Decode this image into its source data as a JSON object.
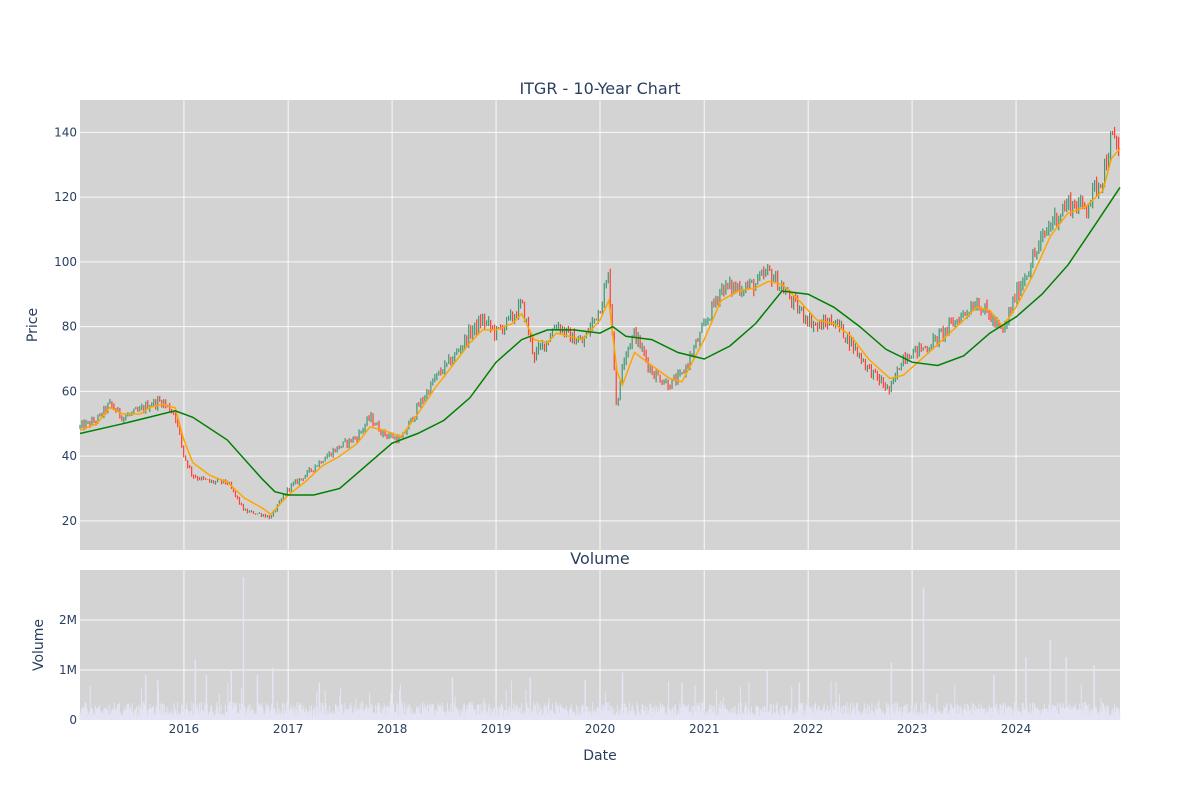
{
  "chart_data": [
    {
      "type": "candlestick",
      "title": "ITGR - 10-Year Chart",
      "ylabel": "Price",
      "ylim": [
        11,
        150
      ],
      "yticks": [
        20,
        40,
        60,
        80,
        100,
        120,
        140
      ],
      "xlim": [
        "2015-01-01",
        "2024-12-31"
      ],
      "xticks": [
        "2016",
        "2017",
        "2018",
        "2019",
        "2020",
        "2021",
        "2022",
        "2023",
        "2024"
      ],
      "grid": true,
      "colors": {
        "increasing": "#3d9970",
        "decreasing": "#ff4136",
        "ma_short": "#ffa500",
        "ma_long": "#008000",
        "plot_bg": "#d3d3d3"
      },
      "close_series": {
        "x": [
          "2015-01-01",
          "2015-03-01",
          "2015-04-15",
          "2015-06-01",
          "2015-08-01",
          "2015-09-01",
          "2015-10-15",
          "2015-12-01",
          "2016-01-01",
          "2016-02-01",
          "2016-04-01",
          "2016-06-01",
          "2016-08-01",
          "2016-10-01",
          "2016-11-01",
          "2017-01-01",
          "2017-03-01",
          "2017-05-01",
          "2017-07-01",
          "2017-09-01",
          "2017-10-15",
          "2017-12-01",
          "2018-02-01",
          "2018-04-01",
          "2018-06-01",
          "2018-08-01",
          "2018-10-01",
          "2018-11-15",
          "2019-01-01",
          "2019-03-01",
          "2019-04-01",
          "2019-05-15",
          "2019-07-01",
          "2019-08-01",
          "2019-09-15",
          "2019-11-01",
          "2020-01-01",
          "2020-02-01",
          "2020-03-01",
          "2020-03-20",
          "2020-05-01",
          "2020-07-01",
          "2020-09-01",
          "2020-10-15",
          "2021-01-01",
          "2021-03-01",
          "2021-05-01",
          "2021-07-01",
          "2021-08-15",
          "2021-10-01",
          "2021-12-01",
          "2022-02-01",
          "2022-04-01",
          "2022-06-01",
          "2022-08-01",
          "2022-10-15",
          "2022-12-01",
          "2023-03-01",
          "2023-05-01",
          "2023-07-01",
          "2023-08-15",
          "2023-10-01",
          "2023-11-15",
          "2024-01-01",
          "2024-03-01",
          "2024-05-01",
          "2024-07-01",
          "2024-09-01",
          "2024-11-01",
          "2024-12-01",
          "2024-12-31"
        ],
        "close": [
          49,
          51,
          56,
          52,
          54,
          56,
          57,
          53,
          40,
          34,
          32,
          32,
          23,
          22,
          21,
          30,
          34,
          39,
          43,
          46,
          52,
          47,
          45,
          55,
          64,
          70,
          78,
          82,
          78,
          83,
          87,
          71,
          76,
          81,
          77,
          75,
          86,
          96,
          53,
          70,
          78,
          66,
          62,
          65,
          80,
          92,
          92,
          93,
          97,
          92,
          85,
          80,
          82,
          75,
          67,
          60,
          71,
          74,
          79,
          84,
          88,
          83,
          78,
          90,
          101,
          112,
          118,
          117,
          127,
          138,
          134
        ]
      },
      "ma_short": {
        "x": [
          "2015-01-01",
          "2015-03-01",
          "2015-04-15",
          "2015-06-01",
          "2015-08-01",
          "2015-09-01",
          "2015-10-15",
          "2015-12-01",
          "2016-01-01",
          "2016-02-01",
          "2016-04-01",
          "2016-06-01",
          "2016-08-01",
          "2016-10-01",
          "2016-11-01",
          "2017-01-01",
          "2017-03-01",
          "2017-05-01",
          "2017-07-01",
          "2017-09-01",
          "2017-10-15",
          "2017-12-01",
          "2018-02-01",
          "2018-04-01",
          "2018-06-01",
          "2018-08-01",
          "2018-10-01",
          "2018-11-15",
          "2019-01-01",
          "2019-03-01",
          "2019-04-01",
          "2019-05-15",
          "2019-07-01",
          "2019-08-01",
          "2019-09-15",
          "2019-11-01",
          "2020-01-01",
          "2020-02-01",
          "2020-03-01",
          "2020-03-20",
          "2020-05-01",
          "2020-07-01",
          "2020-09-01",
          "2020-10-15",
          "2021-01-01",
          "2021-03-01",
          "2021-05-01",
          "2021-07-01",
          "2021-08-15",
          "2021-10-01",
          "2021-12-01",
          "2022-02-01",
          "2022-04-01",
          "2022-06-01",
          "2022-08-01",
          "2022-10-15",
          "2022-12-01",
          "2023-03-01",
          "2023-05-01",
          "2023-07-01",
          "2023-08-15",
          "2023-10-01",
          "2023-11-15",
          "2024-01-01",
          "2024-03-01",
          "2024-05-01",
          "2024-07-01",
          "2024-09-01",
          "2024-11-01",
          "2024-12-01",
          "2024-12-31"
        ],
        "values": [
          48,
          50,
          55,
          53,
          53,
          55,
          56,
          55,
          45,
          38,
          34,
          32,
          27,
          24,
          22,
          28,
          32,
          37,
          40,
          44,
          49,
          48,
          46,
          53,
          61,
          68,
          75,
          79,
          79,
          81,
          84,
          76,
          75,
          78,
          77,
          76,
          82,
          88,
          66,
          62,
          72,
          68,
          64,
          63,
          76,
          88,
          91,
          92,
          94,
          93,
          88,
          82,
          81,
          77,
          70,
          64,
          65,
          72,
          77,
          82,
          86,
          85,
          80,
          86,
          96,
          108,
          115,
          117,
          122,
          132,
          135
        ]
      },
      "ma_long": {
        "x": [
          "2015-01-01",
          "2015-06-01",
          "2015-12-01",
          "2016-02-01",
          "2016-06-01",
          "2016-10-01",
          "2016-11-15",
          "2017-01-01",
          "2017-04-01",
          "2017-07-01",
          "2017-10-01",
          "2018-01-01",
          "2018-04-01",
          "2018-07-01",
          "2018-10-01",
          "2019-01-01",
          "2019-04-01",
          "2019-07-01",
          "2019-10-01",
          "2020-01-01",
          "2020-02-15",
          "2020-04-01",
          "2020-07-01",
          "2020-10-01",
          "2021-01-01",
          "2021-04-01",
          "2021-07-01",
          "2021-10-01",
          "2022-01-01",
          "2022-04-01",
          "2022-07-01",
          "2022-10-01",
          "2023-01-01",
          "2023-04-01",
          "2023-07-01",
          "2023-10-01",
          "2024-01-01",
          "2024-04-01",
          "2024-07-01",
          "2024-10-01",
          "2024-12-31"
        ],
        "values": [
          47,
          50,
          54,
          52,
          45,
          33,
          29,
          28,
          28,
          30,
          37,
          44,
          47,
          51,
          58,
          69,
          76,
          79,
          79,
          78,
          80,
          77,
          76,
          72,
          70,
          74,
          81,
          91,
          90,
          86,
          80,
          73,
          69,
          68,
          71,
          78,
          83,
          90,
          99,
          111,
          123
        ]
      }
    },
    {
      "type": "bar",
      "title": "Volume",
      "xlabel": "Date",
      "ylabel": "Volume",
      "ylim": [
        0,
        3000000
      ],
      "yticks": [
        0,
        1000000,
        2000000
      ],
      "ytick_labels": [
        "0",
        "1M",
        "2M"
      ],
      "xticks": [
        "2016",
        "2017",
        "2018",
        "2019",
        "2020",
        "2021",
        "2022",
        "2023",
        "2024"
      ],
      "grid": true,
      "colors": {
        "bar": "#e4e4f5"
      },
      "spikes": [
        {
          "date": "2015-08-20",
          "value": 900000
        },
        {
          "date": "2015-10-01",
          "value": 800000
        },
        {
          "date": "2016-02-10",
          "value": 1200000
        },
        {
          "date": "2016-03-20",
          "value": 900000
        },
        {
          "date": "2016-06-15",
          "value": 1000000
        },
        {
          "date": "2016-07-28",
          "value": 2850000
        },
        {
          "date": "2016-09-15",
          "value": 900000
        },
        {
          "date": "2016-11-08",
          "value": 1050000
        },
        {
          "date": "2017-04-20",
          "value": 750000
        },
        {
          "date": "2018-08-01",
          "value": 850000
        },
        {
          "date": "2019-05-01",
          "value": 850000
        },
        {
          "date": "2019-11-10",
          "value": 800000
        },
        {
          "date": "2020-03-20",
          "value": 950000
        },
        {
          "date": "2020-10-15",
          "value": 750000
        },
        {
          "date": "2021-08-10",
          "value": 1000000
        },
        {
          "date": "2021-12-01",
          "value": 750000
        },
        {
          "date": "2022-10-20",
          "value": 1150000
        },
        {
          "date": "2023-02-10",
          "value": 2650000
        },
        {
          "date": "2023-10-15",
          "value": 900000
        },
        {
          "date": "2024-02-05",
          "value": 1250000
        },
        {
          "date": "2024-04-30",
          "value": 1600000
        },
        {
          "date": "2024-06-25",
          "value": 1250000
        },
        {
          "date": "2024-10-01",
          "value": 1100000
        }
      ],
      "typical_volume": 250000
    }
  ]
}
